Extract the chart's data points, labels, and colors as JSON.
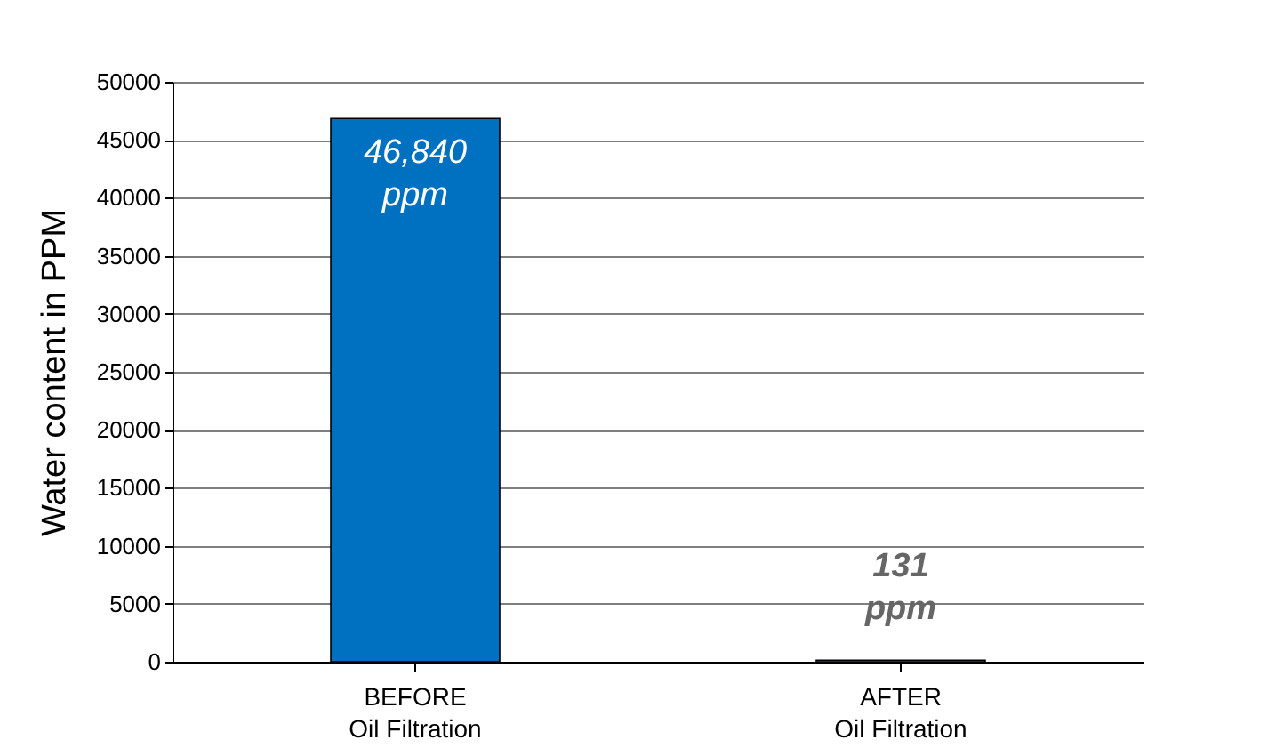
{
  "chart_data": {
    "type": "bar",
    "ylabel": "Water content in PPM",
    "categories": [
      "BEFORE Oil Filtration",
      "AFTER Oil Filtration"
    ],
    "values": [
      46840,
      131
    ],
    "colors": [
      "#0070c0",
      "#9fb8c8"
    ],
    "value_labels": [
      "46,840 ppm",
      "131 ppm"
    ],
    "ylim": [
      0,
      50000
    ],
    "yticks": [
      0,
      5000,
      10000,
      15000,
      20000,
      25000,
      30000,
      35000,
      40000,
      45000,
      50000
    ],
    "grid": "y"
  }
}
